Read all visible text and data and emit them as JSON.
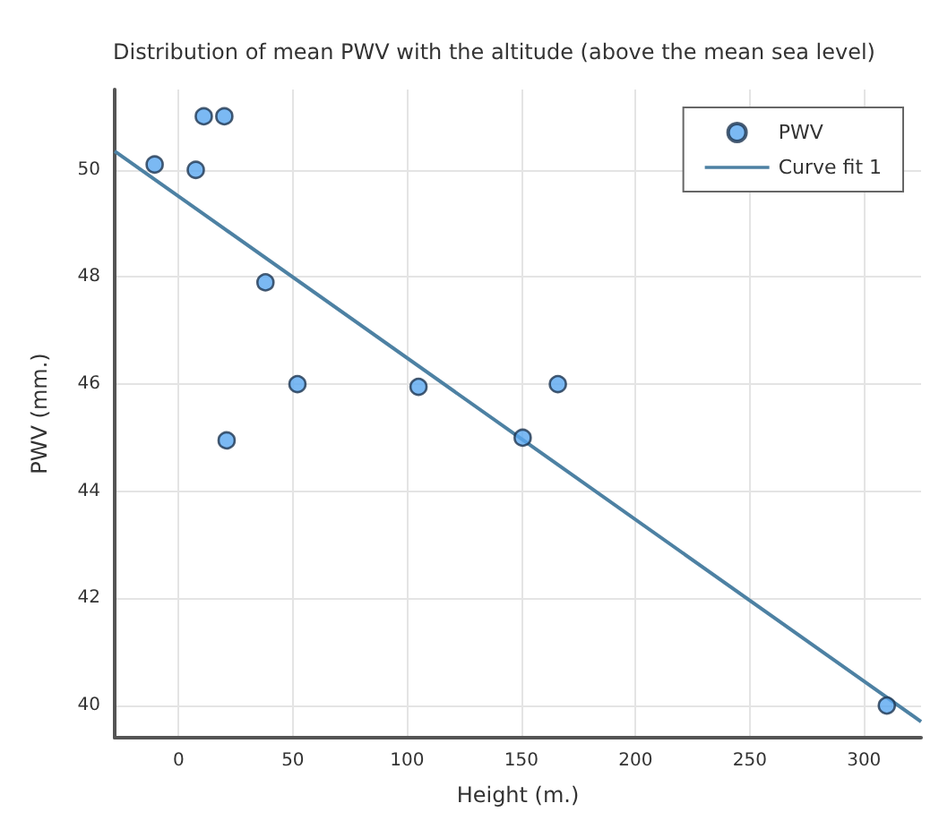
{
  "chart_data": {
    "type": "scatter",
    "title": "Distribution of mean PWV with the altitude (above the mean sea level)",
    "xlabel": "Height (m.)",
    "ylabel": "PWV (mm.)",
    "series": [
      {
        "name": "PWV",
        "color": "#5aa8f0",
        "marker": "circle",
        "x": [
          -10.5,
          7.5,
          11,
          20,
          38,
          52,
          105,
          166,
          21,
          150.6,
          310
        ],
        "values": [
          50.1,
          50.0,
          51.0,
          51.0,
          47.9,
          46.0,
          45.95,
          46.0,
          44.95,
          45.0,
          40.0
        ]
      },
      {
        "name": "Curve fit 1",
        "type": "line",
        "color": "#4d81a3",
        "marker": "none",
        "line_style": "solid",
        "x": [
          -28,
          325
        ],
        "values": [
          50.35,
          39.7
        ]
      }
    ],
    "xlim": [
      -28,
      325
    ],
    "xticks": [
      0,
      50,
      100,
      150,
      200,
      250,
      300
    ],
    "ylim": [
      39.4,
      51.5
    ],
    "yticks": [
      40,
      42,
      44,
      46,
      48,
      50
    ],
    "grid": true,
    "legend": "top right"
  }
}
